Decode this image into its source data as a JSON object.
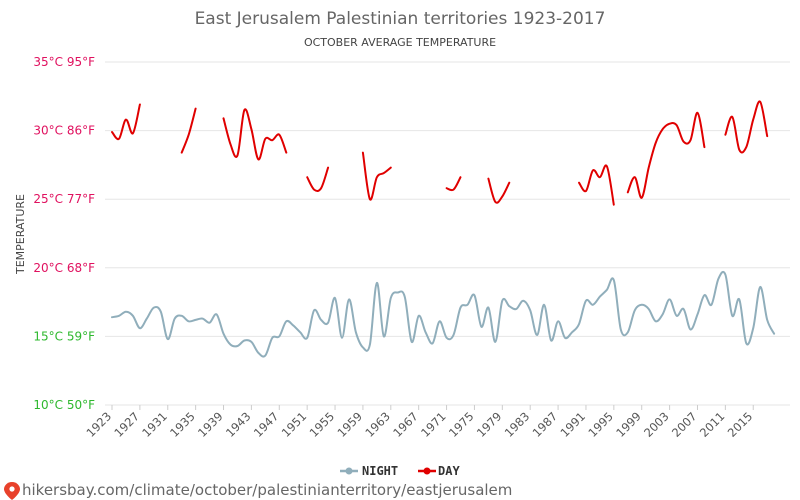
{
  "chart_data": {
    "type": "line",
    "title": "East Jerusalem Palestinian territories 1923-2017",
    "subtitle": "OCTOBER AVERAGE TEMPERATURE",
    "ylabel": "TEMPERATURE",
    "xlabel": "",
    "ylim": [
      10,
      35
    ],
    "xlim": [
      1923,
      2017
    ],
    "grid": true,
    "legend_position": "bottom-center",
    "x_ticks": [
      "1923",
      "1927",
      "1931",
      "1935",
      "1939",
      "1943",
      "1947",
      "1951",
      "1955",
      "1959",
      "1963",
      "1967",
      "1971",
      "1975",
      "1979",
      "1983",
      "1987",
      "1991",
      "1995",
      "1999",
      "2003",
      "2007",
      "2011",
      "2015"
    ],
    "y_ticks": [
      {
        "value": 35,
        "label": "35°C 95°F",
        "color": "#e0115f"
      },
      {
        "value": 30,
        "label": "30°C 86°F",
        "color": "#e0115f"
      },
      {
        "value": 25,
        "label": "25°C 77°F",
        "color": "#e0115f"
      },
      {
        "value": 20,
        "label": "20°C 68°F",
        "color": "#e0115f"
      },
      {
        "value": 15,
        "label": "15°C 59°F",
        "color": "#2eb82e"
      },
      {
        "value": 10,
        "label": "10°C 50°F",
        "color": "#2eb82e"
      }
    ],
    "series": [
      {
        "name": "NIGHT",
        "color": "#90aebb",
        "points": [
          [
            1923,
            16.4
          ],
          [
            1924,
            16.5
          ],
          [
            1925,
            16.8
          ],
          [
            1926,
            16.5
          ],
          [
            1927,
            15.6
          ],
          [
            1928,
            16.3
          ],
          [
            1929,
            17.1
          ],
          [
            1930,
            16.8
          ],
          [
            1931,
            14.8
          ],
          [
            1932,
            16.3
          ],
          [
            1933,
            16.5
          ],
          [
            1934,
            16.1
          ],
          [
            1935,
            16.2
          ],
          [
            1936,
            16.3
          ],
          [
            1937,
            16.0
          ],
          [
            1938,
            16.6
          ],
          [
            1939,
            15.2
          ],
          [
            1940,
            14.4
          ],
          [
            1941,
            14.3
          ],
          [
            1942,
            14.7
          ],
          [
            1943,
            14.6
          ],
          [
            1944,
            13.8
          ],
          [
            1945,
            13.6
          ],
          [
            1946,
            14.9
          ],
          [
            1947,
            15.0
          ],
          [
            1948,
            16.1
          ],
          [
            1949,
            15.8
          ],
          [
            1950,
            15.3
          ],
          [
            1951,
            14.9
          ],
          [
            1952,
            16.9
          ],
          [
            1953,
            16.2
          ],
          [
            1954,
            16.0
          ],
          [
            1955,
            17.8
          ],
          [
            1956,
            14.9
          ],
          [
            1957,
            17.7
          ],
          [
            1958,
            15.3
          ],
          [
            1959,
            14.2
          ],
          [
            1960,
            14.4
          ],
          [
            1961,
            18.9
          ],
          [
            1962,
            15.0
          ],
          [
            1963,
            17.8
          ],
          [
            1964,
            18.2
          ],
          [
            1965,
            17.9
          ],
          [
            1966,
            14.6
          ],
          [
            1967,
            16.5
          ],
          [
            1968,
            15.3
          ],
          [
            1969,
            14.5
          ],
          [
            1970,
            16.1
          ],
          [
            1971,
            14.9
          ],
          [
            1972,
            15.1
          ],
          [
            1973,
            17.1
          ],
          [
            1974,
            17.3
          ],
          [
            1975,
            18.0
          ],
          [
            1976,
            15.7
          ],
          [
            1977,
            17.1
          ],
          [
            1978,
            14.6
          ],
          [
            1979,
            17.6
          ],
          [
            1980,
            17.2
          ],
          [
            1981,
            17.0
          ],
          [
            1982,
            17.6
          ],
          [
            1983,
            16.9
          ],
          [
            1984,
            15.1
          ],
          [
            1985,
            17.3
          ],
          [
            1986,
            14.7
          ],
          [
            1987,
            16.1
          ],
          [
            1988,
            14.9
          ],
          [
            1989,
            15.3
          ],
          [
            1990,
            15.9
          ],
          [
            1991,
            17.6
          ],
          [
            1992,
            17.3
          ],
          [
            1993,
            17.9
          ],
          [
            1994,
            18.4
          ],
          [
            1995,
            19.1
          ],
          [
            1996,
            15.5
          ],
          [
            1997,
            15.3
          ],
          [
            1998,
            16.9
          ],
          [
            1999,
            17.3
          ],
          [
            2000,
            17.0
          ],
          [
            2001,
            16.1
          ],
          [
            2002,
            16.6
          ],
          [
            2003,
            17.7
          ],
          [
            2004,
            16.5
          ],
          [
            2005,
            17.0
          ],
          [
            2006,
            15.5
          ],
          [
            2007,
            16.6
          ],
          [
            2008,
            18.0
          ],
          [
            2009,
            17.3
          ],
          [
            2010,
            19.2
          ],
          [
            2011,
            19.5
          ],
          [
            2012,
            16.5
          ],
          [
            2013,
            17.7
          ],
          [
            2014,
            14.5
          ],
          [
            2015,
            15.6
          ],
          [
            2016,
            18.6
          ],
          [
            2017,
            16.2
          ],
          [
            2018,
            15.2
          ]
        ]
      },
      {
        "name": "DAY",
        "color": "#e00000",
        "segments": [
          [
            [
              1923,
              29.9
            ],
            [
              1924,
              29.4
            ],
            [
              1925,
              30.8
            ],
            [
              1926,
              29.8
            ],
            [
              1927,
              31.9
            ]
          ],
          [
            [
              1933,
              28.4
            ],
            [
              1934,
              29.7
            ],
            [
              1935,
              31.6
            ]
          ],
          [
            [
              1939,
              30.9
            ],
            [
              1940,
              29.0
            ],
            [
              1941,
              28.2
            ],
            [
              1942,
              31.5
            ],
            [
              1943,
              30.1
            ],
            [
              1944,
              27.9
            ],
            [
              1945,
              29.4
            ],
            [
              1946,
              29.3
            ],
            [
              1947,
              29.7
            ],
            [
              1948,
              28.4
            ]
          ],
          [
            [
              1951,
              26.6
            ],
            [
              1952,
              25.7
            ],
            [
              1953,
              25.8
            ],
            [
              1954,
              27.3
            ]
          ],
          [
            [
              1959,
              28.4
            ],
            [
              1960,
              25.0
            ],
            [
              1961,
              26.6
            ],
            [
              1962,
              26.9
            ],
            [
              1963,
              27.3
            ]
          ],
          [
            [
              1971,
              25.8
            ],
            [
              1972,
              25.7
            ],
            [
              1973,
              26.6
            ]
          ],
          [
            [
              1977,
              26.5
            ],
            [
              1978,
              24.8
            ],
            [
              1979,
              25.2
            ],
            [
              1980,
              26.2
            ]
          ],
          [
            [
              1990,
              26.2
            ],
            [
              1991,
              25.6
            ],
            [
              1992,
              27.1
            ],
            [
              1993,
              26.6
            ],
            [
              1994,
              27.4
            ],
            [
              1995,
              24.6
            ]
          ],
          [
            [
              1997,
              25.5
            ],
            [
              1998,
              26.6
            ],
            [
              1999,
              25.1
            ],
            [
              2000,
              27.3
            ],
            [
              2001,
              29.1
            ],
            [
              2002,
              30.1
            ],
            [
              2003,
              30.5
            ],
            [
              2004,
              30.4
            ],
            [
              2005,
              29.2
            ],
            [
              2006,
              29.3
            ],
            [
              2007,
              31.3
            ],
            [
              2008,
              28.8
            ]
          ],
          [
            [
              2011,
              29.7
            ],
            [
              2012,
              31.0
            ],
            [
              2013,
              28.6
            ],
            [
              2014,
              28.8
            ],
            [
              2015,
              30.8
            ],
            [
              2016,
              32.1
            ],
            [
              2017,
              29.6
            ]
          ]
        ]
      }
    ]
  },
  "footer": {
    "url": "hikersbay.com/climate/october/palestinianterritory/eastjerusalem",
    "pin_color": "#e8412b"
  }
}
